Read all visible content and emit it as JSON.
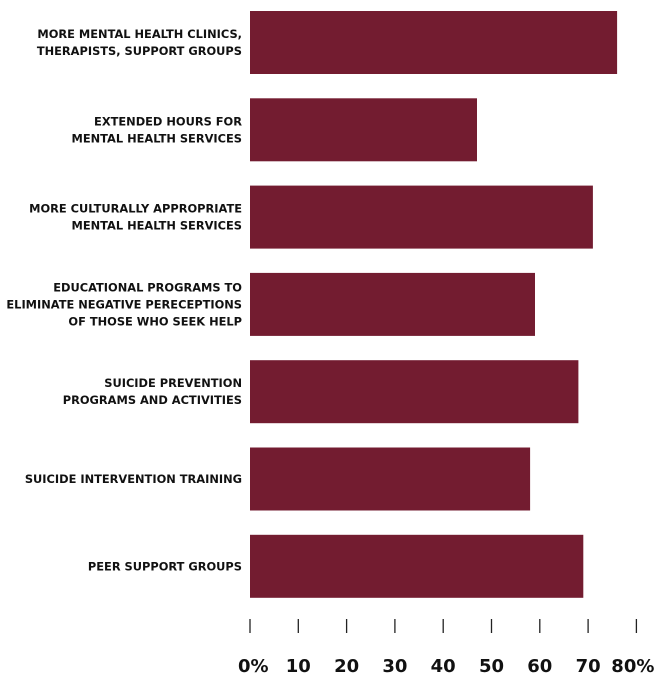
{
  "chart_data": {
    "type": "bar",
    "orientation": "horizontal",
    "categories": [
      "MORE MENTAL HEALTH CLINICS,\nTHERAPISTS, SUPPORT GROUPS",
      "EXTENDED HOURS FOR\nMENTAL HEALTH SERVICES",
      "MORE CULTURALLY APPROPRIATE\nMENTAL HEALTH SERVICES",
      "EDUCATIONAL PROGRAMS TO\nELIMINATE NEGATIVE PERECEPTIONS\nOF THOSE WHO SEEK HELP",
      "SUICIDE PREVENTION\nPROGRAMS AND ACTIVITIES",
      "SUICIDE INTERVENTION TRAINING",
      "PEER SUPPORT GROUPS"
    ],
    "values": [
      76,
      47,
      71,
      59,
      68,
      58,
      69
    ],
    "xlim": [
      0,
      80
    ],
    "x_ticks": [
      "0%",
      "10",
      "20",
      "30",
      "40",
      "50",
      "60",
      "70",
      "80%"
    ],
    "bar_color": "#731c30",
    "grid": false,
    "legend": "none"
  }
}
